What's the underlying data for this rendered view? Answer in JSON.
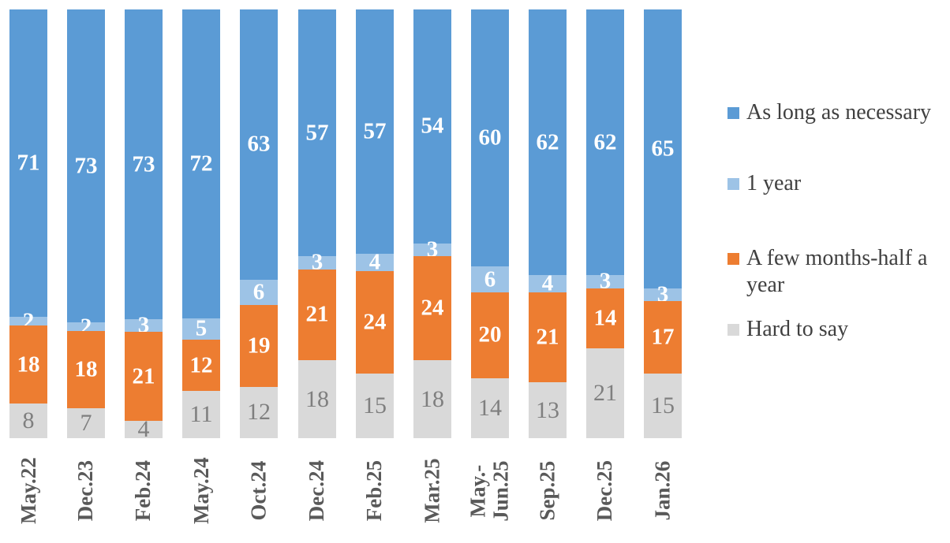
{
  "chart_data": {
    "type": "bar",
    "stacked": true,
    "orientation": "vertical",
    "title": "",
    "xlabel": "",
    "ylabel": "",
    "ylim": [
      0,
      100
    ],
    "grid": false,
    "legend_position": "right",
    "categories": [
      "May.22",
      "Dec.23",
      "Feb.24",
      "May.24",
      "Oct.24",
      "Dec.24",
      "Feb.25",
      "Mar.25",
      "May.-\nJun.25",
      "Sep.25",
      "Dec.25",
      "Jan.26"
    ],
    "series": [
      {
        "name": "As long as necessary",
        "color": "#5B9BD5",
        "label_color": "#ffffff",
        "values": [
          71,
          73,
          73,
          72,
          63,
          57,
          57,
          54,
          60,
          62,
          62,
          65
        ]
      },
      {
        "name": "1 year",
        "color": "#9DC3E6",
        "label_color": "#ffffff",
        "values": [
          2,
          2,
          3,
          5,
          6,
          3,
          4,
          3,
          6,
          4,
          3,
          3
        ]
      },
      {
        "name": "A few months-half a year",
        "color": "#ED7D31",
        "label_color": "#ffffff",
        "values": [
          18,
          18,
          21,
          12,
          19,
          21,
          24,
          24,
          20,
          21,
          14,
          17
        ]
      },
      {
        "name": "Hard to say",
        "color": "#D9D9D9",
        "label_color": "#7f7f7f",
        "values": [
          8,
          7,
          4,
          11,
          12,
          18,
          15,
          18,
          14,
          13,
          21,
          15
        ]
      }
    ]
  },
  "colors": {
    "background": "#ffffff",
    "axis_label": "#595959",
    "legend_text": "#404040"
  }
}
